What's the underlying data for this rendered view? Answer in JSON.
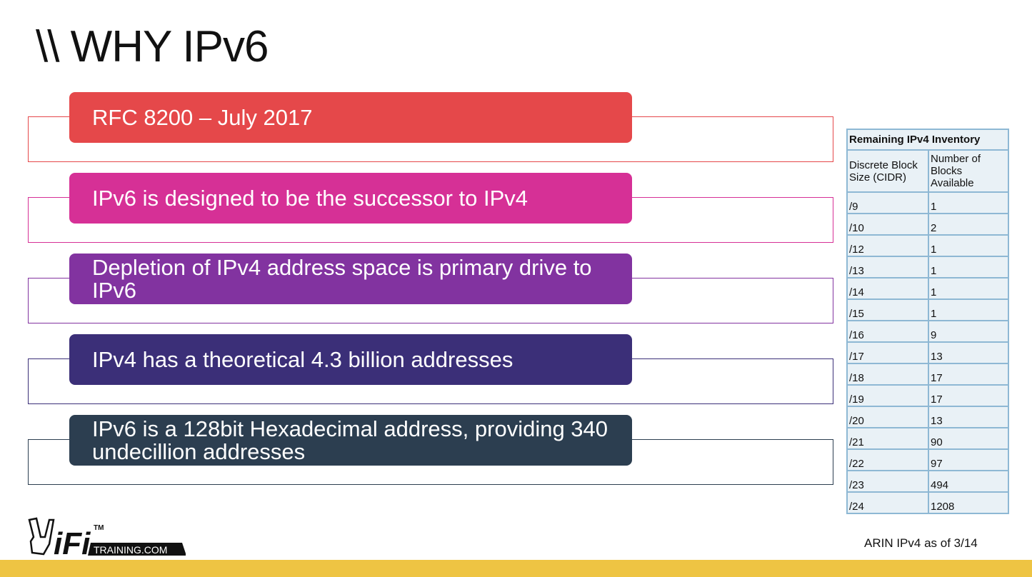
{
  "title": "\\\\ WHY IPv6",
  "items": [
    {
      "text": "RFC 8200 – July 2017",
      "color": "#E5484A"
    },
    {
      "text": "IPv6 is designed to be the successor to IPv4",
      "color": "#D63096"
    },
    {
      "text": "Depletion of IPv4 address space is primary drive to IPv6",
      "color": "#8233A0"
    },
    {
      "text": "IPv4 has a theoretical 4.3 billion addresses",
      "color": "#3B2F78"
    },
    {
      "text": "IPv6 is a 128bit Hexadecimal address, providing 340 undecillion addresses",
      "color": "#2C3E50"
    }
  ],
  "table": {
    "title": "Remaining IPv4 Inventory",
    "headers": [
      "Discrete Block Size (CIDR)",
      "Number of Blocks Available"
    ],
    "rows": [
      [
        "/9",
        "1"
      ],
      [
        "/10",
        "2"
      ],
      [
        "/12",
        "1"
      ],
      [
        "/13",
        "1"
      ],
      [
        "/14",
        "1"
      ],
      [
        "/15",
        "1"
      ],
      [
        "/16",
        "9"
      ],
      [
        "/17",
        "13"
      ],
      [
        "/18",
        "17"
      ],
      [
        "/19",
        "17"
      ],
      [
        "/20",
        "13"
      ],
      [
        "/21",
        "90"
      ],
      [
        "/22",
        "97"
      ],
      [
        "/23",
        "494"
      ],
      [
        "/24",
        "1208"
      ]
    ],
    "caption": "ARIN IPv4 as of 3/14"
  },
  "logo": {
    "text": "WiFi TRAINING.COM",
    "tm": "TM"
  },
  "footer_color": "#EEC443"
}
